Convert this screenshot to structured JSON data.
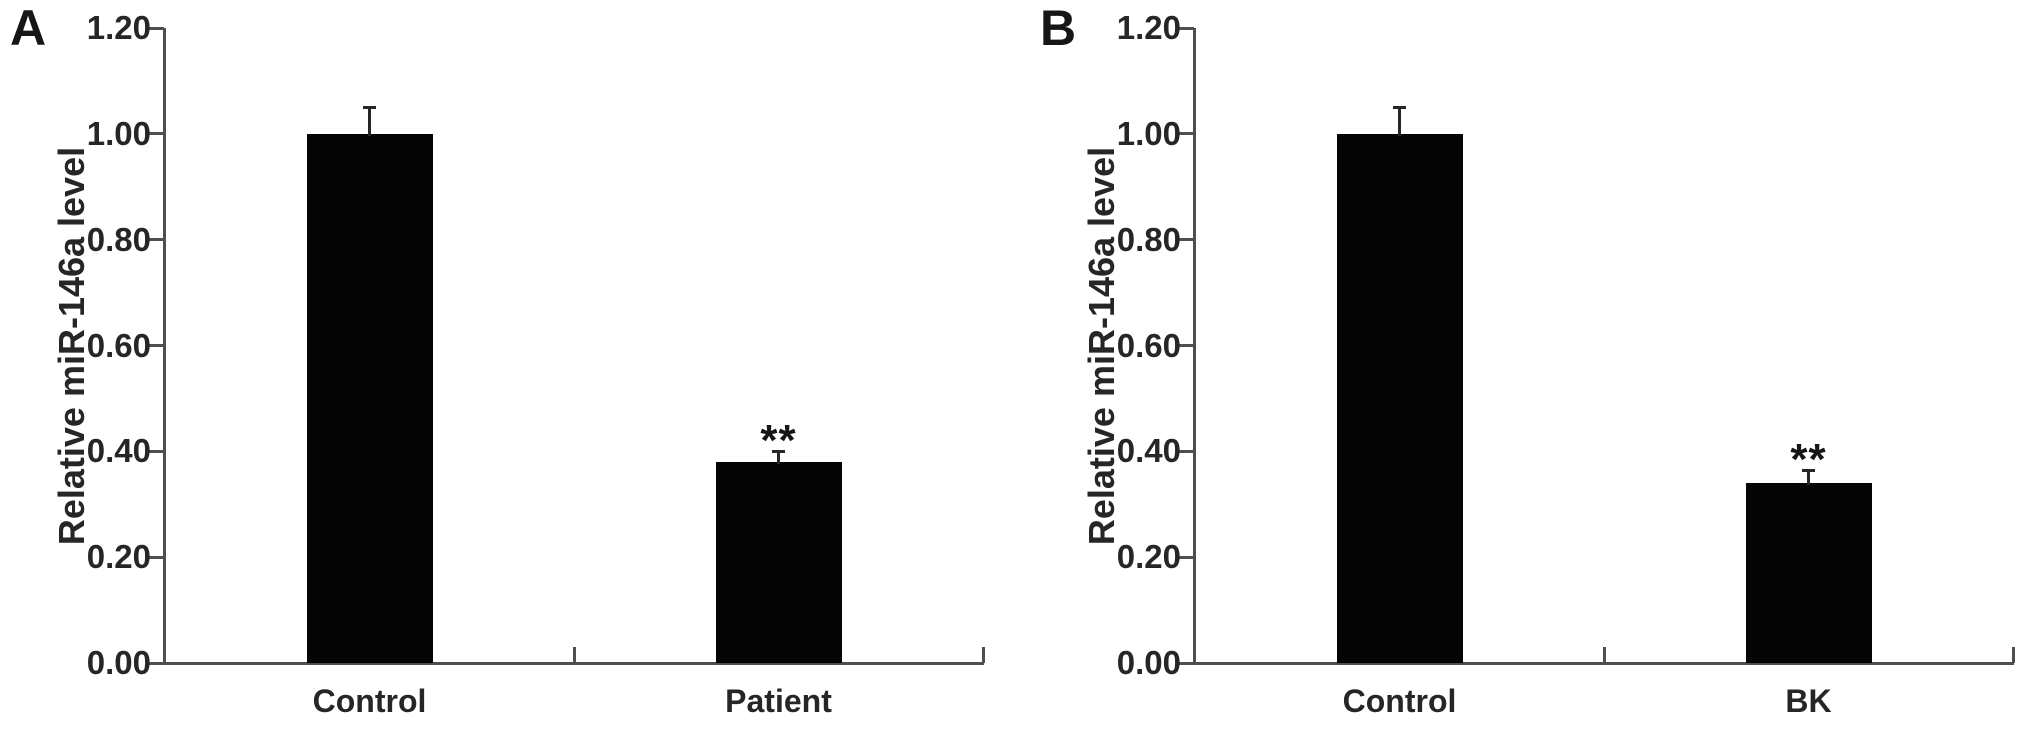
{
  "figure": {
    "background": "#ffffff",
    "panel_letters": [
      "A",
      "B"
    ]
  },
  "colors": {
    "bar": "#050505",
    "axis": "#4f4f4f",
    "text": "#262626"
  },
  "chart_data": [
    {
      "type": "bar",
      "panel": "A",
      "title": "",
      "xlabel": "",
      "ylabel": "Relative miR-146a level",
      "categories": [
        "Control",
        "Patient"
      ],
      "values": [
        1.0,
        0.38
      ],
      "errors_plus": [
        0.05,
        0.02
      ],
      "significance": [
        "",
        "**"
      ],
      "yticks": [
        0.0,
        0.2,
        0.4,
        0.6,
        0.8,
        1.0,
        1.2
      ],
      "ytick_labels": [
        "0.00",
        "0.20",
        "0.40",
        "0.60",
        "0.80",
        "1.00",
        "1.20"
      ],
      "ylim": [
        0,
        1.2
      ],
      "bar_color": "#050505",
      "grid": false,
      "legend_position": "none"
    },
    {
      "type": "bar",
      "panel": "B",
      "title": "",
      "xlabel": "",
      "ylabel": "Relative miR-146a level",
      "categories": [
        "Control",
        "BK"
      ],
      "values": [
        1.0,
        0.34
      ],
      "errors_plus": [
        0.05,
        0.025
      ],
      "significance": [
        "",
        "**"
      ],
      "yticks": [
        0.0,
        0.2,
        0.4,
        0.6,
        0.8,
        1.0,
        1.2
      ],
      "ytick_labels": [
        "0.00",
        "0.20",
        "0.40",
        "0.60",
        "0.80",
        "1.00",
        "1.20"
      ],
      "ylim": [
        0,
        1.2
      ],
      "bar_color": "#050505",
      "grid": false,
      "legend_position": "none"
    }
  ]
}
